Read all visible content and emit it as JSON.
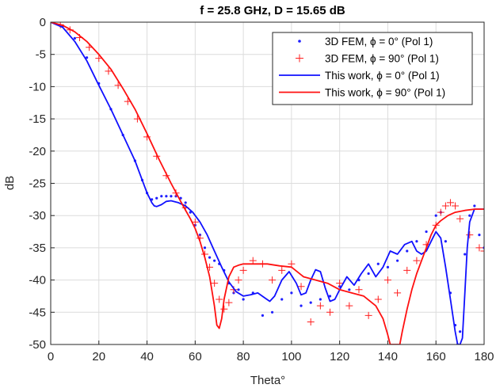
{
  "chart_data": {
    "type": "line",
    "title": "f = 25.8 GHz, D = 15.65 dB",
    "xlabel": "Theta°",
    "ylabel": "dB",
    "xlim": [
      0,
      180
    ],
    "ylim": [
      -50,
      0
    ],
    "xticks": [
      "0",
      "20",
      "40",
      "60",
      "80",
      "100",
      "120",
      "140",
      "160",
      "180"
    ],
    "yticks": [
      "0",
      "-5",
      "-10",
      "-15",
      "-20",
      "-25",
      "-30",
      "-35",
      "-40",
      "-45",
      "-50"
    ],
    "grid": true,
    "legend_position": "top-right",
    "series": [
      {
        "name": "3D FEM, ϕ = 0° (Pol 1)",
        "style": "markers-dot",
        "color": "#1f1fff",
        "x": [
          0,
          5,
          10,
          15,
          20,
          25,
          30,
          35,
          38,
          40,
          42,
          44,
          46,
          48,
          50,
          52,
          54,
          56,
          58,
          60,
          62,
          64,
          66,
          68,
          70,
          72,
          74,
          76,
          78,
          80,
          84,
          88,
          92,
          96,
          100,
          104,
          108,
          112,
          116,
          120,
          124,
          128,
          132,
          136,
          140,
          144,
          148,
          152,
          156,
          160,
          162,
          164,
          166,
          168,
          169,
          170,
          172,
          174,
          176,
          178,
          180
        ],
        "y": [
          0,
          -0.6,
          -2.5,
          -5.5,
          -9.5,
          -13.5,
          -17.5,
          -21.5,
          -24.5,
          -26.5,
          -27.5,
          -27.3,
          -27.0,
          -27.0,
          -27.0,
          -27.0,
          -27.3,
          -28.0,
          -29.5,
          -31.5,
          -33.0,
          -35.0,
          -36.5,
          -37.0,
          -37.5,
          -38.5,
          -40.5,
          -42.0,
          -41.5,
          -43.0,
          -42.0,
          -45.5,
          -45.0,
          -43.0,
          -42.0,
          -44.0,
          -43.5,
          -43.0,
          -42.5,
          -41.0,
          -41.5,
          -40.0,
          -39.0,
          -37.5,
          -38.0,
          -37.0,
          -35.5,
          -34.0,
          -32.5,
          -30.0,
          -29.5,
          -34.0,
          -42.0,
          -47.0,
          -50.0,
          -48.0,
          -36.0,
          -30.0,
          -28.5,
          -33.0,
          -35.0
        ]
      },
      {
        "name": "3D FEM, ϕ = 90° (Pol 1)",
        "style": "markers-plus",
        "color": "#ff1f1f",
        "x": [
          0,
          4,
          8,
          12,
          16,
          20,
          24,
          28,
          32,
          36,
          40,
          44,
          48,
          52,
          56,
          60,
          62,
          64,
          66,
          68,
          70,
          72,
          74,
          76,
          78,
          80,
          84,
          88,
          92,
          96,
          100,
          104,
          108,
          112,
          116,
          120,
          124,
          128,
          132,
          136,
          140,
          144,
          148,
          152,
          156,
          160,
          162,
          164,
          166,
          168,
          170,
          174,
          178,
          180
        ],
        "y": [
          0,
          -0.4,
          -1.2,
          -2.4,
          -3.9,
          -5.6,
          -7.6,
          -9.8,
          -12.3,
          -15.0,
          -17.8,
          -20.8,
          -23.8,
          -26.5,
          -28.8,
          -31.0,
          -33.5,
          -36.0,
          -38.0,
          -40.5,
          -43.0,
          -44.5,
          -43.5,
          -41.5,
          -40.0,
          -38.5,
          -37.0,
          -37.5,
          -40.0,
          -38.5,
          -37.5,
          -41.0,
          -46.5,
          -44.0,
          -45.0,
          -40.5,
          -44.0,
          -41.5,
          -45.5,
          -43.0,
          -40.0,
          -42.0,
          -38.5,
          -37.0,
          -34.5,
          -31.5,
          -29.5,
          -28.5,
          -28.0,
          -28.5,
          -30.5,
          -33.0,
          -35.0,
          -35.5
        ]
      },
      {
        "name": "This work, ϕ = 0° (Pol 1)",
        "style": "line",
        "color": "#1010ff",
        "x": [
          0,
          5,
          10,
          15,
          20,
          25,
          30,
          35,
          38,
          40,
          42,
          43,
          44,
          46,
          48,
          50,
          53,
          56,
          59,
          62,
          65,
          68,
          71,
          74,
          77,
          80,
          83,
          86,
          89,
          91,
          93,
          96,
          99,
          102,
          104,
          106,
          108,
          110,
          112,
          114,
          116,
          118,
          120,
          123,
          126,
          129,
          132,
          135,
          138,
          141,
          144,
          147,
          150,
          152,
          154,
          156,
          158,
          160,
          162,
          164,
          166,
          168,
          169,
          170,
          171,
          172,
          173,
          174,
          176,
          178,
          180
        ],
        "y": [
          0,
          -0.8,
          -3.0,
          -6.0,
          -9.8,
          -13.5,
          -17.5,
          -21.5,
          -24.5,
          -26.5,
          -28.0,
          -28.5,
          -28.6,
          -28.3,
          -27.8,
          -27.7,
          -28.0,
          -28.5,
          -29.5,
          -31.0,
          -33.0,
          -35.5,
          -38.0,
          -40.3,
          -41.8,
          -42.5,
          -42.3,
          -42.0,
          -42.8,
          -43.3,
          -42.5,
          -40.0,
          -38.7,
          -40.5,
          -42.3,
          -42.0,
          -40.0,
          -38.4,
          -38.7,
          -41.2,
          -43.3,
          -43.0,
          -41.5,
          -39.5,
          -40.8,
          -39.0,
          -37.5,
          -39.5,
          -38.0,
          -35.5,
          -36.0,
          -34.5,
          -34.0,
          -35.5,
          -36.0,
          -35.5,
          -34.0,
          -32.5,
          -33.5,
          -38.0,
          -43.0,
          -48.0,
          -50.0,
          -50.0,
          -49.0,
          -42.0,
          -35.0,
          -31.0,
          -29.0,
          -29.0,
          -29.0
        ]
      },
      {
        "name": "This work, ϕ = 90° (Pol 1)",
        "style": "line",
        "color": "#ff1010",
        "x": [
          0,
          5,
          10,
          15,
          20,
          25,
          30,
          35,
          40,
          45,
          50,
          55,
          58,
          60,
          62,
          64,
          66,
          68,
          69,
          70,
          71,
          72,
          74,
          76,
          78,
          80,
          85,
          90,
          95,
          100,
          105,
          110,
          115,
          120,
          125,
          130,
          135,
          138,
          140,
          141,
          142,
          143,
          144,
          145,
          146,
          148,
          150,
          152,
          154,
          156,
          158,
          160,
          162,
          165,
          168,
          172,
          176,
          180
        ],
        "y": [
          0,
          -0.5,
          -1.5,
          -3.0,
          -5.0,
          -7.3,
          -10.3,
          -13.5,
          -17.3,
          -21.3,
          -25.0,
          -28.5,
          -30.5,
          -32.0,
          -34.0,
          -36.5,
          -39.5,
          -44.0,
          -47.0,
          -47.5,
          -46.0,
          -43.0,
          -39.5,
          -38.0,
          -37.7,
          -37.5,
          -37.5,
          -37.5,
          -37.8,
          -38.0,
          -39.5,
          -40.0,
          -40.5,
          -41.5,
          -42.0,
          -42.5,
          -44.0,
          -46.0,
          -48.5,
          -50.0,
          -50.0,
          -50.0,
          -50.0,
          -50.0,
          -48.0,
          -44.5,
          -41.5,
          -39.0,
          -37.0,
          -35.0,
          -33.0,
          -31.5,
          -30.8,
          -30.0,
          -29.5,
          -29.2,
          -29.0,
          -29.0
        ]
      }
    ]
  }
}
